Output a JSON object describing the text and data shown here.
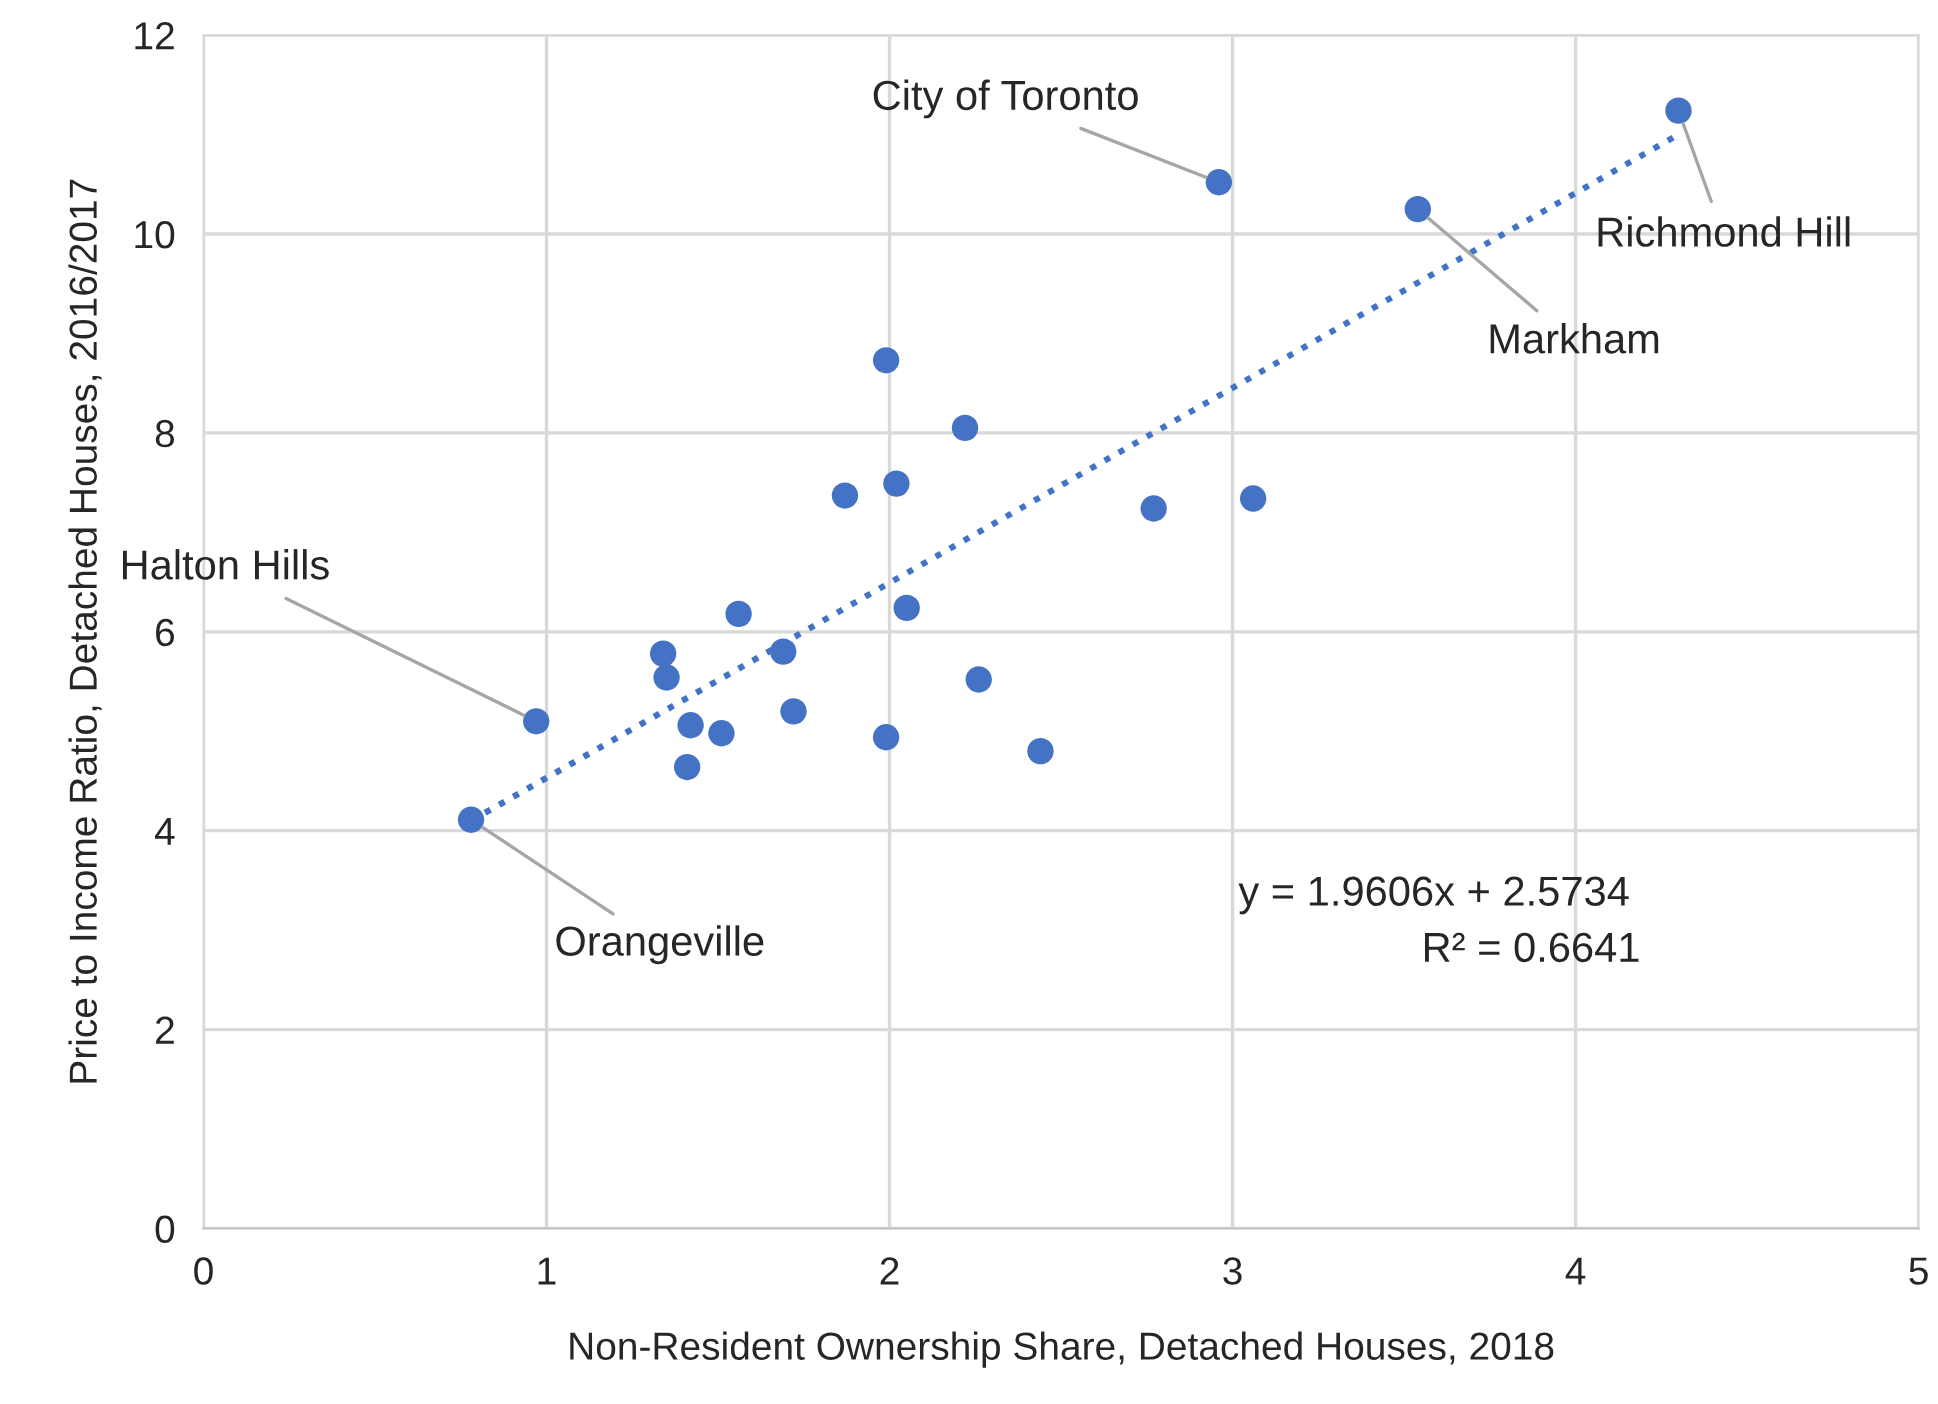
{
  "chart_data": {
    "type": "scatter",
    "xlabel": "Non-Resident Ownership Share, Detached Houses, 2018",
    "ylabel": "Price to Income Ratio, Detached Houses, 2016/2017",
    "xlim": [
      0,
      5
    ],
    "xticks": [
      0,
      1,
      2,
      3,
      4,
      5
    ],
    "ylim": [
      0,
      12
    ],
    "yticks": [
      0,
      2,
      4,
      6,
      8,
      10,
      12
    ],
    "grid": true,
    "series": [
      {
        "marker": "circle",
        "color": "#4472c4",
        "x": [
          0.78,
          0.97,
          1.34,
          1.35,
          1.42,
          1.41,
          1.51,
          1.56,
          1.69,
          1.72,
          1.87,
          1.99,
          2.02,
          1.99,
          2.05,
          2.22,
          2.26,
          2.44,
          2.77,
          2.96,
          3.06,
          3.54,
          4.3
        ],
        "values": [
          4.11,
          5.1,
          5.78,
          5.54,
          5.06,
          4.64,
          4.98,
          6.18,
          5.8,
          5.2,
          7.37,
          8.73,
          7.49,
          4.94,
          6.24,
          8.05,
          5.52,
          4.8,
          7.24,
          10.52,
          7.34,
          10.25,
          11.24
        ]
      },
      {
        "type": "line",
        "color": "#4472c4",
        "line_style": "dotted",
        "x": [
          0.78,
          4.3
        ],
        "values": [
          4.1,
          11.0
        ]
      }
    ],
    "annotations": [
      {
        "text": "City of Toronto",
        "x": 2.96,
        "y": 10.52
      },
      {
        "text": "Richmond Hill",
        "x": 4.3,
        "y": 11.24
      },
      {
        "text": "Markham",
        "x": 3.54,
        "y": 10.25
      },
      {
        "text": "Halton Hills",
        "x": 0.97,
        "y": 5.1
      },
      {
        "text": "Orangeville",
        "x": 0.78,
        "y": 4.11
      },
      "y = 1.9606x + 2.5734",
      "R² = 0.6641"
    ]
  }
}
